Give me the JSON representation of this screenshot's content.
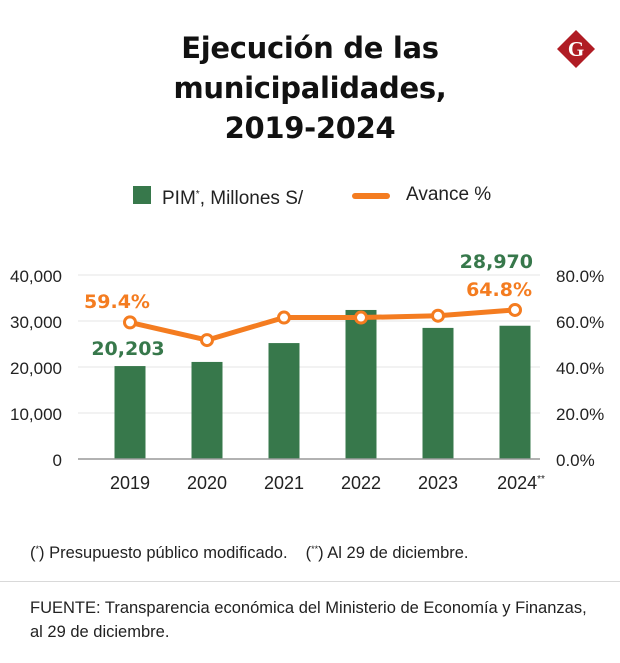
{
  "header": {
    "title_lines": [
      "Ejecución de las",
      "municipalidades,",
      "2019-2024"
    ],
    "logo_letter": "G",
    "logo_color": "#b01c24"
  },
  "legend": {
    "bar_label": "PIM",
    "bar_label_sup": "*",
    "bar_label_rest": ", Millones S/",
    "line_label": "Avance %"
  },
  "colors": {
    "bar": "#37784b",
    "line": "#f47c20",
    "grid": "#e6e6e6",
    "axis": "#999999"
  },
  "chart_data": {
    "type": "bar",
    "title": "Ejecución de las municipalidades, 2019-2024",
    "categories": [
      "2019",
      "2020",
      "2021",
      "2022",
      "2023",
      "2024"
    ],
    "category_suffixes": [
      "",
      "",
      "",
      "",
      "",
      "**"
    ],
    "series": [
      {
        "name": "PIM*, Millones S/",
        "type": "bar",
        "axis": "left",
        "values": [
          20203,
          21100,
          25200,
          32400,
          28500,
          28970
        ]
      },
      {
        "name": "Avance %",
        "type": "line",
        "axis": "right",
        "values": [
          59.4,
          51.7,
          61.5,
          61.5,
          62.3,
          64.8
        ]
      }
    ],
    "data_labels": [
      {
        "series": 0,
        "index": 0,
        "text": "20,203"
      },
      {
        "series": 0,
        "index": 5,
        "text": "28,970"
      },
      {
        "series": 1,
        "index": 0,
        "text": "59.4%"
      },
      {
        "series": 1,
        "index": 5,
        "text": "64.8%"
      }
    ],
    "y_left": {
      "ylim": [
        0,
        40000
      ],
      "ticks": [
        0,
        10000,
        20000,
        30000,
        40000
      ],
      "tick_labels": [
        "0",
        "10,000",
        "20,000",
        "30,000",
        "40,000"
      ]
    },
    "y_right": {
      "ylim": [
        0,
        80
      ],
      "ticks": [
        0,
        20,
        40,
        60,
        80
      ],
      "tick_labels": [
        "0.0%",
        "20.0%",
        "40.0%",
        "60.0%",
        "80.0%"
      ]
    },
    "xlabel": "",
    "ylabel": "",
    "grid": true,
    "legend_position": "top-center"
  },
  "notes": {
    "note1_prefix": "(",
    "note1_sup": "*",
    "note1_text": ") Presupuesto público modificado.",
    "note2_prefix": "(",
    "note2_sup": "**",
    "note2_text": ") Al 29 de diciembre."
  },
  "source": "FUENTE: Transparencia económica del Ministerio de Economía y Finanzas, al 29 de diciembre."
}
